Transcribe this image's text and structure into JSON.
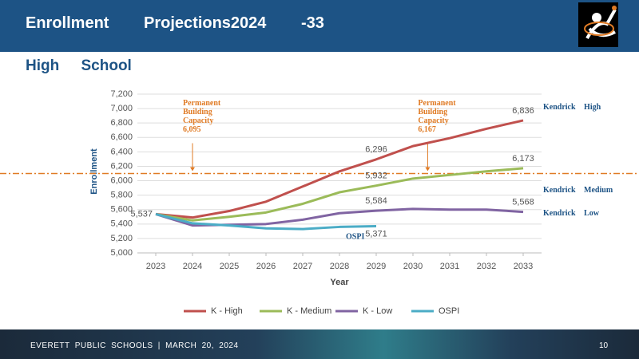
{
  "header": {
    "title": "Enrollment Projections2024 -33",
    "subtitle": "High School"
  },
  "footer": {
    "text": "EVERETT PUBLIC SCHOOLS | MARCH 20, 2024",
    "page": "10"
  },
  "chart_data": {
    "type": "line",
    "xlabel": "Year",
    "ylabel": "Enrollment",
    "x": [
      2023,
      2024,
      2025,
      2026,
      2027,
      2028,
      2029,
      2030,
      2031,
      2032,
      2033
    ],
    "xlim": [
      2022.5,
      2033.5
    ],
    "xticks": [
      2023,
      2024,
      2025,
      2026,
      2027,
      2028,
      2029,
      2030,
      2031,
      2032,
      2033
    ],
    "ylim": [
      5000,
      7200
    ],
    "yticks": [
      {
        "value": 5000,
        "label": "5,000"
      },
      {
        "value": 5200,
        "label": "5,200"
      },
      {
        "value": 5400,
        "label": "5,400"
      },
      {
        "value": 5600,
        "label": "5,600"
      },
      {
        "value": 5800,
        "label": "5,800"
      },
      {
        "value": 6000,
        "label": "6,000"
      },
      {
        "value": 6200,
        "label": "6,200"
      },
      {
        "value": 6400,
        "label": "6,400"
      },
      {
        "value": 6600,
        "label": "6,600"
      },
      {
        "value": 6800,
        "label": "6,800"
      },
      {
        "value": 7000,
        "label": "7,000"
      },
      {
        "value": 7200,
        "label": "7,200"
      }
    ],
    "grid": true,
    "legend": "bottom",
    "series": [
      {
        "name": "K - High",
        "color": "#c0504d",
        "end_label": "Kendrick High",
        "values": [
          5537,
          5490,
          5580,
          5710,
          5920,
          6130,
          6296,
          6480,
          6590,
          6720,
          6836
        ],
        "value_labels": [
          "5,537",
          null,
          null,
          null,
          null,
          null,
          "6,296",
          null,
          null,
          null,
          "6,836"
        ]
      },
      {
        "name": "K - Medium",
        "color": "#9bbb59",
        "end_label": "Kendrick Medium",
        "values": [
          5537,
          5450,
          5500,
          5560,
          5680,
          5840,
          5932,
          6030,
          6080,
          6130,
          6173
        ],
        "value_labels": [
          null,
          null,
          null,
          null,
          null,
          null,
          "5,932",
          null,
          null,
          null,
          "6,173"
        ]
      },
      {
        "name": "K - Low",
        "color": "#8064a2",
        "end_label": "Kendrick Low",
        "values": [
          5537,
          5380,
          5390,
          5400,
          5460,
          5550,
          5584,
          5610,
          5600,
          5600,
          5568
        ],
        "value_labels": [
          null,
          null,
          null,
          null,
          null,
          null,
          "5,584",
          null,
          null,
          null,
          "5,568"
        ]
      },
      {
        "name": "OSPI",
        "color": "#4bacc6",
        "end_label": "OSPI",
        "values": [
          5537,
          5410,
          5380,
          5340,
          5330,
          5360,
          5371,
          null,
          null,
          null,
          null
        ],
        "value_labels": [
          null,
          null,
          null,
          null,
          null,
          null,
          "5,371",
          null,
          null,
          null,
          null
        ]
      }
    ],
    "reference_line": {
      "value": 6100,
      "color": "#e07b25"
    },
    "annotations": [
      {
        "x": 2024,
        "text": [
          "Permanent",
          "Building",
          "Capacity"
        ],
        "value_label": "6,095"
      },
      {
        "x": 2030.4,
        "text": [
          "Permanent",
          "Building",
          "Capacity"
        ],
        "value_label": "6,167"
      }
    ]
  }
}
